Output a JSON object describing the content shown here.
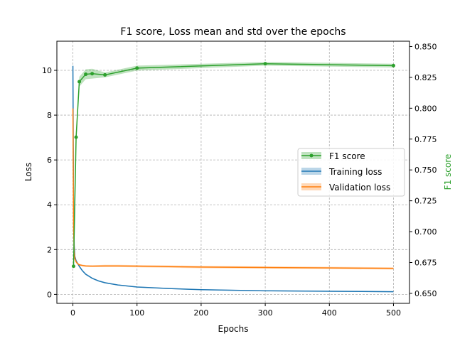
{
  "chart_data": {
    "type": "line",
    "title": "F1 score, Loss mean and std over the epochs",
    "xlabel": "Epochs",
    "ylabel": "Loss",
    "y2label": "F1 score",
    "xlim": [
      -25,
      525
    ],
    "ylim": [
      -0.4,
      11.3
    ],
    "y2lim": [
      0.6419,
      0.8543
    ],
    "xticks": [
      0,
      100,
      200,
      300,
      400,
      500
    ],
    "yticks": [
      0,
      2,
      4,
      6,
      8,
      10
    ],
    "y2ticks": [
      0.65,
      0.675,
      0.7,
      0.725,
      0.75,
      0.775,
      0.8,
      0.825,
      0.85
    ],
    "xtick_labels": [
      "0",
      "100",
      "200",
      "300",
      "400",
      "500"
    ],
    "ytick_labels": [
      "0",
      "2",
      "4",
      "6",
      "8",
      "10"
    ],
    "y2tick_labels": [
      "0.650",
      "0.675",
      "0.700",
      "0.725",
      "0.750",
      "0.775",
      "0.800",
      "0.825",
      "0.850"
    ],
    "grid": true,
    "legend_position": "center-right",
    "series": [
      {
        "name": "F1 score",
        "axis": "right",
        "color": "#2ca02c",
        "marker": true,
        "x": [
          1,
          5,
          10,
          20,
          30,
          50,
          100,
          300,
          500
        ],
        "y": [
          0.672,
          0.7765,
          0.8215,
          0.8275,
          0.828,
          0.827,
          0.8325,
          0.836,
          0.8345
        ],
        "std": [
          0.0,
          0.006,
          0.004,
          0.004,
          0.004,
          0.002,
          0.002,
          0.0015,
          0.0015
        ]
      },
      {
        "name": "Training loss",
        "axis": "left",
        "color": "#1f77b4",
        "marker": false,
        "x": [
          0,
          1,
          2,
          3,
          5,
          7,
          10,
          15,
          20,
          30,
          40,
          50,
          70,
          100,
          150,
          200,
          300,
          400,
          500
        ],
        "y": [
          10.2,
          4.0,
          2.2,
          1.7,
          1.5,
          1.4,
          1.25,
          1.05,
          0.9,
          0.72,
          0.6,
          0.52,
          0.42,
          0.33,
          0.26,
          0.21,
          0.16,
          0.14,
          0.12
        ],
        "std": [
          0.4,
          0.3,
          0.15,
          0.08,
          0.06,
          0.05,
          0.05,
          0.04,
          0.04,
          0.03,
          0.03,
          0.03,
          0.02,
          0.02,
          0.02,
          0.02,
          0.02,
          0.02,
          0.02
        ]
      },
      {
        "name": "Validation loss",
        "axis": "left",
        "color": "#ff7f0e",
        "marker": false,
        "x": [
          0,
          1,
          2,
          3,
          5,
          7,
          10,
          15,
          20,
          30,
          50,
          70,
          100,
          200,
          300,
          400,
          500
        ],
        "y": [
          8.3,
          3.0,
          1.9,
          1.6,
          1.45,
          1.38,
          1.32,
          1.29,
          1.27,
          1.26,
          1.27,
          1.27,
          1.26,
          1.22,
          1.2,
          1.18,
          1.16
        ],
        "std": [
          0.3,
          0.2,
          0.1,
          0.06,
          0.05,
          0.04,
          0.04,
          0.04,
          0.04,
          0.04,
          0.05,
          0.05,
          0.05,
          0.05,
          0.05,
          0.05,
          0.05
        ]
      }
    ]
  }
}
